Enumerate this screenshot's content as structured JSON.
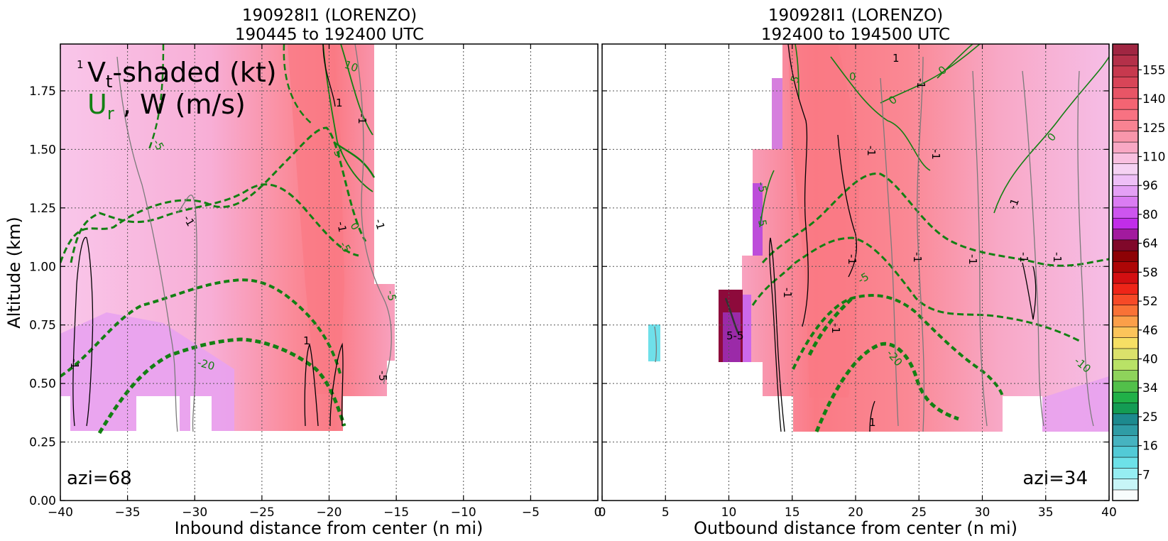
{
  "colors": {
    "vt_scale": [
      "#fdf2fa",
      "#fbe0f4",
      "#f9cfee",
      "#f7bde6",
      "#f5acdc",
      "#f79fcb",
      "#f991b7",
      "#fa82a3",
      "#fb7590",
      "#fc6a7f",
      "#f86170",
      "#f05866",
      "#e5505e",
      "#d84859",
      "#c63f52",
      "#b3364b",
      "#9e2e44"
    ],
    "vt_fill": "#f8bde3",
    "vt_fill_low": "#e8a2f0",
    "vt_core": "#fa7f86",
    "ur_line": "#138013",
    "w_line": "#000000",
    "w_line_light": "#7a7a7a"
  },
  "chart_data": [
    {
      "type": "heatmap",
      "title_lines": [
        "190928I1 (LORENZO)",
        "190445 to 192400 UTC"
      ],
      "xlabel": "Inbound distance from center (n mi)",
      "ylabel": "Altitude (km)",
      "xlim": [
        -40,
        0
      ],
      "ylim": [
        0,
        1.95
      ],
      "x_ticks": [
        -40,
        -35,
        -30,
        -25,
        -20,
        -15,
        -10,
        -5,
        0
      ],
      "x_tick_labels": [
        "−40",
        "−35",
        "−30",
        "−25",
        "−20",
        "−15",
        "−10",
        "−5",
        "0"
      ],
      "y_ticks": [
        0.0,
        0.25,
        0.5,
        0.75,
        1.0,
        1.25,
        1.5,
        1.75
      ],
      "y_tick_labels": [
        "0.00",
        "0.25",
        "0.50",
        "0.75",
        "1.00",
        "1.25",
        "1.50",
        "1.75"
      ],
      "grid": true,
      "legend_lines": [
        {
          "parts": [
            {
              "text": "V",
              "sub": false
            },
            {
              "text": "t",
              "sub": true
            },
            {
              "text": "-shaded (kt)",
              "sub": false
            }
          ]
        },
        {
          "parts": [
            {
              "text": "U",
              "sub": false,
              "green": true
            },
            {
              "text": "r",
              "sub": true,
              "green": true
            },
            {
              "text": " , W (m/s)",
              "sub": false
            }
          ]
        }
      ],
      "annotation": "azi=68",
      "vt_data_extent": {
        "x": [
          -40,
          -14.7
        ],
        "y": [
          0.3,
          1.95
        ]
      },
      "vt_max_kt_approx": 125,
      "vt_max_location": {
        "x": -21,
        "altitude_km": 1.1
      },
      "ur_contour_labels": [
        "10",
        "-5",
        "5",
        "-5",
        "0",
        "-5",
        "-20"
      ],
      "w_contour_labels": [
        "1",
        "1",
        "1",
        "-1",
        "-1",
        "-1",
        "-1",
        "-1",
        "-5"
      ]
    },
    {
      "type": "heatmap",
      "title_lines": [
        "190928I1 (LORENZO)",
        "192400 to 194500 UTC"
      ],
      "xlabel": "Outbound distance from center (n mi)",
      "ylabel": "",
      "xlim": [
        0,
        40
      ],
      "ylim": [
        0,
        1.95
      ],
      "x_ticks": [
        0,
        5,
        10,
        15,
        20,
        25,
        30,
        35,
        40
      ],
      "x_tick_labels": [
        "0",
        "5",
        "10",
        "15",
        "20",
        "25",
        "30",
        "35",
        "40"
      ],
      "grid": true,
      "annotation": "azi=34",
      "vt_data_extent": {
        "x": [
          3.5,
          40
        ],
        "y": [
          0.3,
          1.95
        ]
      },
      "vt_max_kt_approx": 125,
      "vt_max_location": {
        "x": 18,
        "altitude_km": 1.1
      },
      "ur_contour_labels": [
        "5",
        "0",
        "0",
        "0",
        "0",
        "-5",
        "-5",
        "-5",
        "-20",
        "-10"
      ],
      "w_contour_labels": [
        "1",
        "-1",
        "-1",
        "-1",
        "-1",
        "-1",
        "-1",
        "-1",
        "-1",
        "-1",
        "-1",
        "-1",
        "1",
        "5-5"
      ]
    }
  ],
  "colorbar": {
    "tick_labels": [
      "155",
      "140",
      "125",
      "110",
      "96",
      "80",
      "64",
      "58",
      "52",
      "46",
      "40",
      "34",
      "25",
      "16",
      "7"
    ],
    "tick_values": [
      155,
      140,
      125,
      110,
      96,
      80,
      64,
      58,
      52,
      46,
      40,
      34,
      25,
      16,
      7
    ],
    "colors": [
      "#f8fdfd",
      "#c7f5f7",
      "#96eef2",
      "#6de1e8",
      "#52cad6",
      "#46b3c0",
      "#2f9ca5",
      "#1d8a8e",
      "#149c54",
      "#21b048",
      "#52c04a",
      "#8ed35b",
      "#b9e266",
      "#dbe16b",
      "#f6df64",
      "#fcc45a",
      "#fb9f49",
      "#f97236",
      "#f64a27",
      "#ee2518",
      "#d30f11",
      "#ad0606",
      "#8d0205",
      "#80082a",
      "#a21a9e",
      "#c12de9",
      "#cd55ef",
      "#da7cf2",
      "#e4a0f5",
      "#eebff7",
      "#f5d2f3",
      "#f8c0e0",
      "#f8a8c4",
      "#f896ab",
      "#f88392",
      "#f87282",
      "#f46473",
      "#e85566",
      "#d84558",
      "#c7394e",
      "#b43049",
      "#a02642"
    ]
  }
}
